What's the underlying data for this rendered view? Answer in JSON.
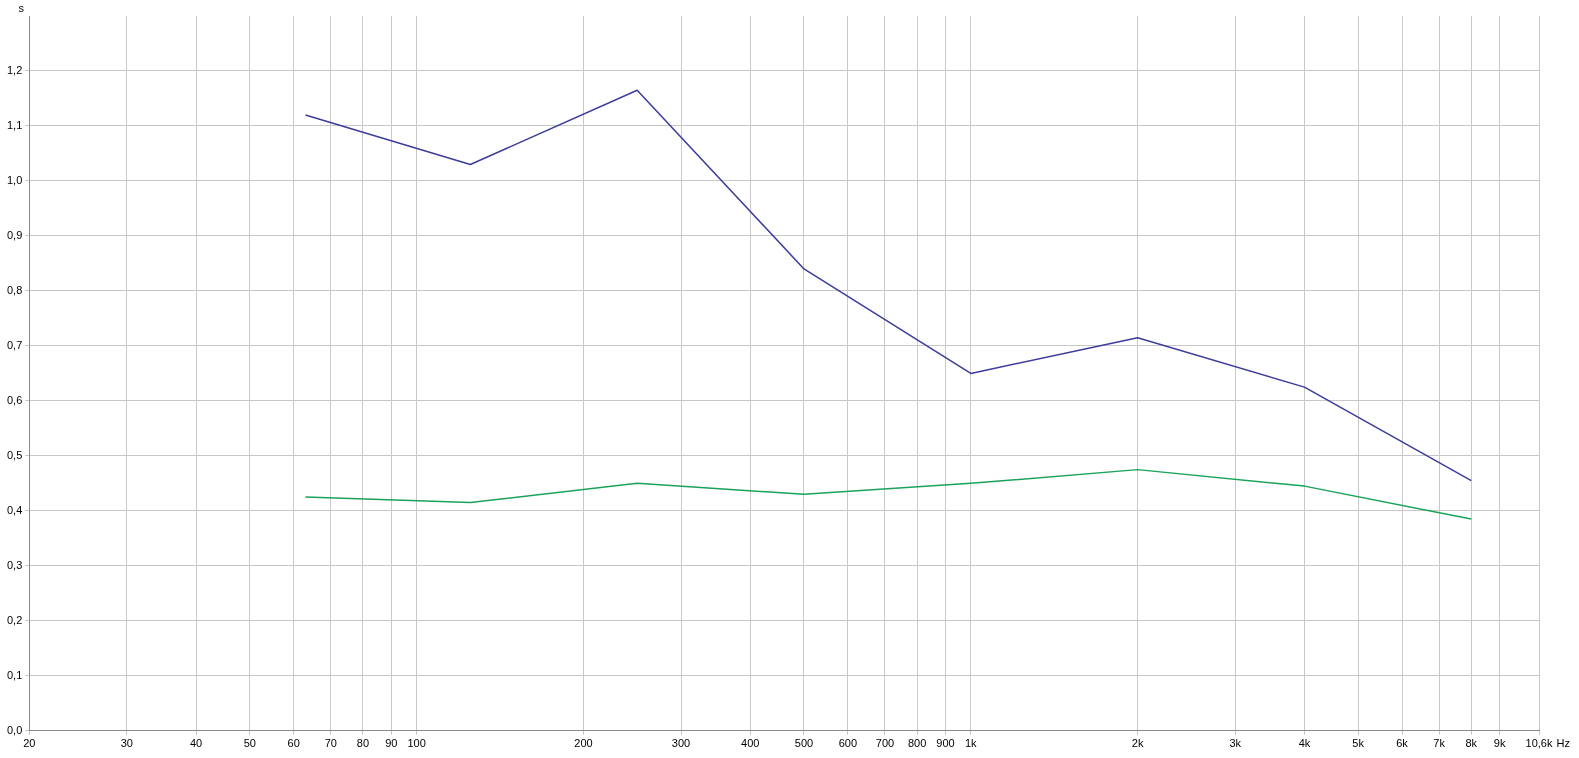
{
  "chart_data": {
    "type": "line",
    "xlabel": "Hz",
    "ylabel": "s",
    "log": "x",
    "x": [
      63,
      125,
      250,
      500,
      1000,
      2000,
      4000,
      8000
    ],
    "series": [
      {
        "color": "#3c3c9c",
        "values": [
          1.12,
          1.03,
          1.165,
          0.84,
          0.65,
          0.715,
          0.625,
          0.455
        ]
      },
      {
        "color": "#1aa35a",
        "values": [
          0.425,
          0.415,
          0.45,
          0.43,
          0.45,
          0.475,
          0.445,
          0.385
        ]
      }
    ],
    "xlim": [
      20,
      10600
    ],
    "xticks": [
      20,
      30,
      40,
      50,
      60,
      70,
      80,
      90,
      100,
      200,
      300,
      400,
      500,
      600,
      700,
      800,
      900,
      {
        "value": 1000,
        "label": "1k"
      },
      {
        "value": 2000,
        "label": "2k"
      },
      {
        "value": 3000,
        "label": "3k"
      },
      {
        "value": 4000,
        "label": "4k"
      },
      {
        "value": 5000,
        "label": "5k"
      },
      {
        "value": 6000,
        "label": "6k"
      },
      {
        "value": 7000,
        "label": "7k"
      },
      {
        "value": 8000,
        "label": "8k"
      },
      {
        "value": 9000,
        "label": "9k"
      },
      {
        "value": 10600,
        "label": "10,6k"
      }
    ],
    "ylim": [
      0,
      1.3
    ],
    "yticks": [
      {
        "value": 0,
        "label": "0,0"
      },
      {
        "value": 0.1,
        "label": "0,1"
      },
      {
        "value": 0.2,
        "label": "0,2"
      },
      {
        "value": 0.3,
        "label": "0,3"
      },
      {
        "value": 0.4,
        "label": "0,4"
      },
      {
        "value": 0.5,
        "label": "0,5"
      },
      {
        "value": 0.6,
        "label": "0,6"
      },
      {
        "value": 0.7,
        "label": "0,7"
      },
      {
        "value": 0.8,
        "label": "0,8"
      },
      {
        "value": 0.9,
        "label": "0,9"
      },
      {
        "value": 1.0,
        "label": "1,0"
      },
      {
        "value": 1.1,
        "label": "1,1"
      },
      {
        "value": 1.2,
        "label": "1,2"
      }
    ],
    "grid": true,
    "legend": false,
    "marker": "none",
    "line_style": "solid"
  }
}
